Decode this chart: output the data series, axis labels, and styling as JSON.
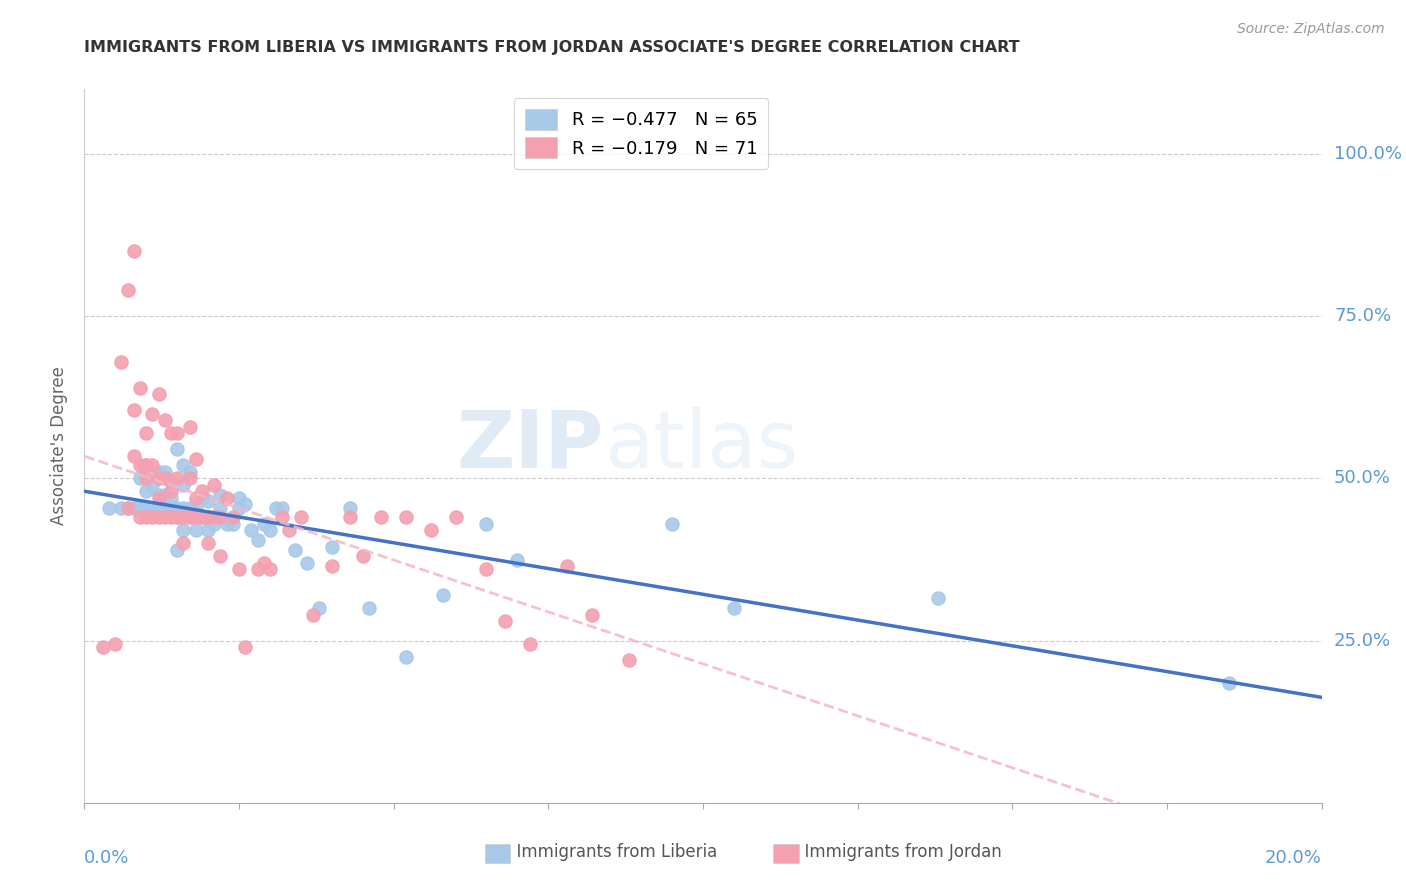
{
  "title": "IMMIGRANTS FROM LIBERIA VS IMMIGRANTS FROM JORDAN ASSOCIATE'S DEGREE CORRELATION CHART",
  "source": "Source: ZipAtlas.com",
  "ylabel": "Associate's Degree",
  "right_yticks": [
    "100.0%",
    "75.0%",
    "50.0%",
    "25.0%"
  ],
  "right_ytick_vals": [
    1.0,
    0.75,
    0.5,
    0.25
  ],
  "legend_liberia": "R = −0.477   N = 65",
  "legend_jordan": "R = −0.179   N = 71",
  "liberia_color": "#A8C8E8",
  "jordan_color": "#F4A0B0",
  "trend_liberia_color": "#4472C4",
  "trend_jordan_color": "#F4B8C4",
  "watermark_zip": "ZIP",
  "watermark_atlas": "atlas",
  "xlim": [
    0.0,
    0.2
  ],
  "ylim": [
    0.0,
    1.1
  ],
  "grid_yticks": [
    0.0,
    0.25,
    0.5,
    0.75,
    1.0
  ],
  "liberia_x": [
    0.004,
    0.006,
    0.007,
    0.008,
    0.009,
    0.009,
    0.01,
    0.01,
    0.01,
    0.011,
    0.011,
    0.012,
    0.012,
    0.012,
    0.013,
    0.013,
    0.013,
    0.014,
    0.014,
    0.014,
    0.015,
    0.015,
    0.015,
    0.015,
    0.016,
    0.016,
    0.016,
    0.016,
    0.017,
    0.017,
    0.017,
    0.018,
    0.018,
    0.019,
    0.019,
    0.02,
    0.02,
    0.021,
    0.022,
    0.022,
    0.023,
    0.024,
    0.025,
    0.025,
    0.026,
    0.027,
    0.028,
    0.029,
    0.03,
    0.031,
    0.032,
    0.034,
    0.036,
    0.038,
    0.04,
    0.043,
    0.046,
    0.052,
    0.058,
    0.065,
    0.07,
    0.095,
    0.105,
    0.138,
    0.185
  ],
  "liberia_y": [
    0.455,
    0.455,
    0.455,
    0.455,
    0.455,
    0.5,
    0.455,
    0.48,
    0.52,
    0.455,
    0.49,
    0.455,
    0.475,
    0.51,
    0.455,
    0.475,
    0.51,
    0.455,
    0.47,
    0.495,
    0.39,
    0.44,
    0.455,
    0.545,
    0.42,
    0.455,
    0.49,
    0.52,
    0.44,
    0.455,
    0.51,
    0.42,
    0.455,
    0.44,
    0.47,
    0.42,
    0.465,
    0.43,
    0.455,
    0.475,
    0.43,
    0.43,
    0.455,
    0.47,
    0.46,
    0.42,
    0.405,
    0.43,
    0.42,
    0.455,
    0.455,
    0.39,
    0.37,
    0.3,
    0.395,
    0.455,
    0.3,
    0.225,
    0.32,
    0.43,
    0.375,
    0.43,
    0.3,
    0.315,
    0.185
  ],
  "jordan_x": [
    0.003,
    0.005,
    0.006,
    0.007,
    0.007,
    0.008,
    0.008,
    0.008,
    0.009,
    0.009,
    0.009,
    0.01,
    0.01,
    0.01,
    0.01,
    0.011,
    0.011,
    0.011,
    0.012,
    0.012,
    0.012,
    0.012,
    0.013,
    0.013,
    0.013,
    0.014,
    0.014,
    0.014,
    0.015,
    0.015,
    0.015,
    0.016,
    0.016,
    0.017,
    0.017,
    0.017,
    0.018,
    0.018,
    0.018,
    0.019,
    0.019,
    0.02,
    0.02,
    0.021,
    0.021,
    0.022,
    0.022,
    0.023,
    0.024,
    0.025,
    0.026,
    0.028,
    0.029,
    0.03,
    0.032,
    0.033,
    0.035,
    0.037,
    0.04,
    0.043,
    0.045,
    0.048,
    0.052,
    0.056,
    0.06,
    0.065,
    0.068,
    0.072,
    0.078,
    0.082,
    0.088
  ],
  "jordan_y": [
    0.24,
    0.245,
    0.68,
    0.79,
    0.455,
    0.85,
    0.535,
    0.605,
    0.44,
    0.52,
    0.64,
    0.44,
    0.5,
    0.52,
    0.57,
    0.44,
    0.52,
    0.6,
    0.44,
    0.47,
    0.5,
    0.63,
    0.44,
    0.5,
    0.59,
    0.44,
    0.48,
    0.57,
    0.44,
    0.5,
    0.57,
    0.4,
    0.44,
    0.44,
    0.5,
    0.58,
    0.44,
    0.47,
    0.53,
    0.44,
    0.48,
    0.4,
    0.44,
    0.44,
    0.49,
    0.38,
    0.44,
    0.47,
    0.44,
    0.36,
    0.24,
    0.36,
    0.37,
    0.36,
    0.44,
    0.42,
    0.44,
    0.29,
    0.365,
    0.44,
    0.38,
    0.44,
    0.44,
    0.42,
    0.44,
    0.36,
    0.28,
    0.245,
    0.365,
    0.29,
    0.22
  ]
}
